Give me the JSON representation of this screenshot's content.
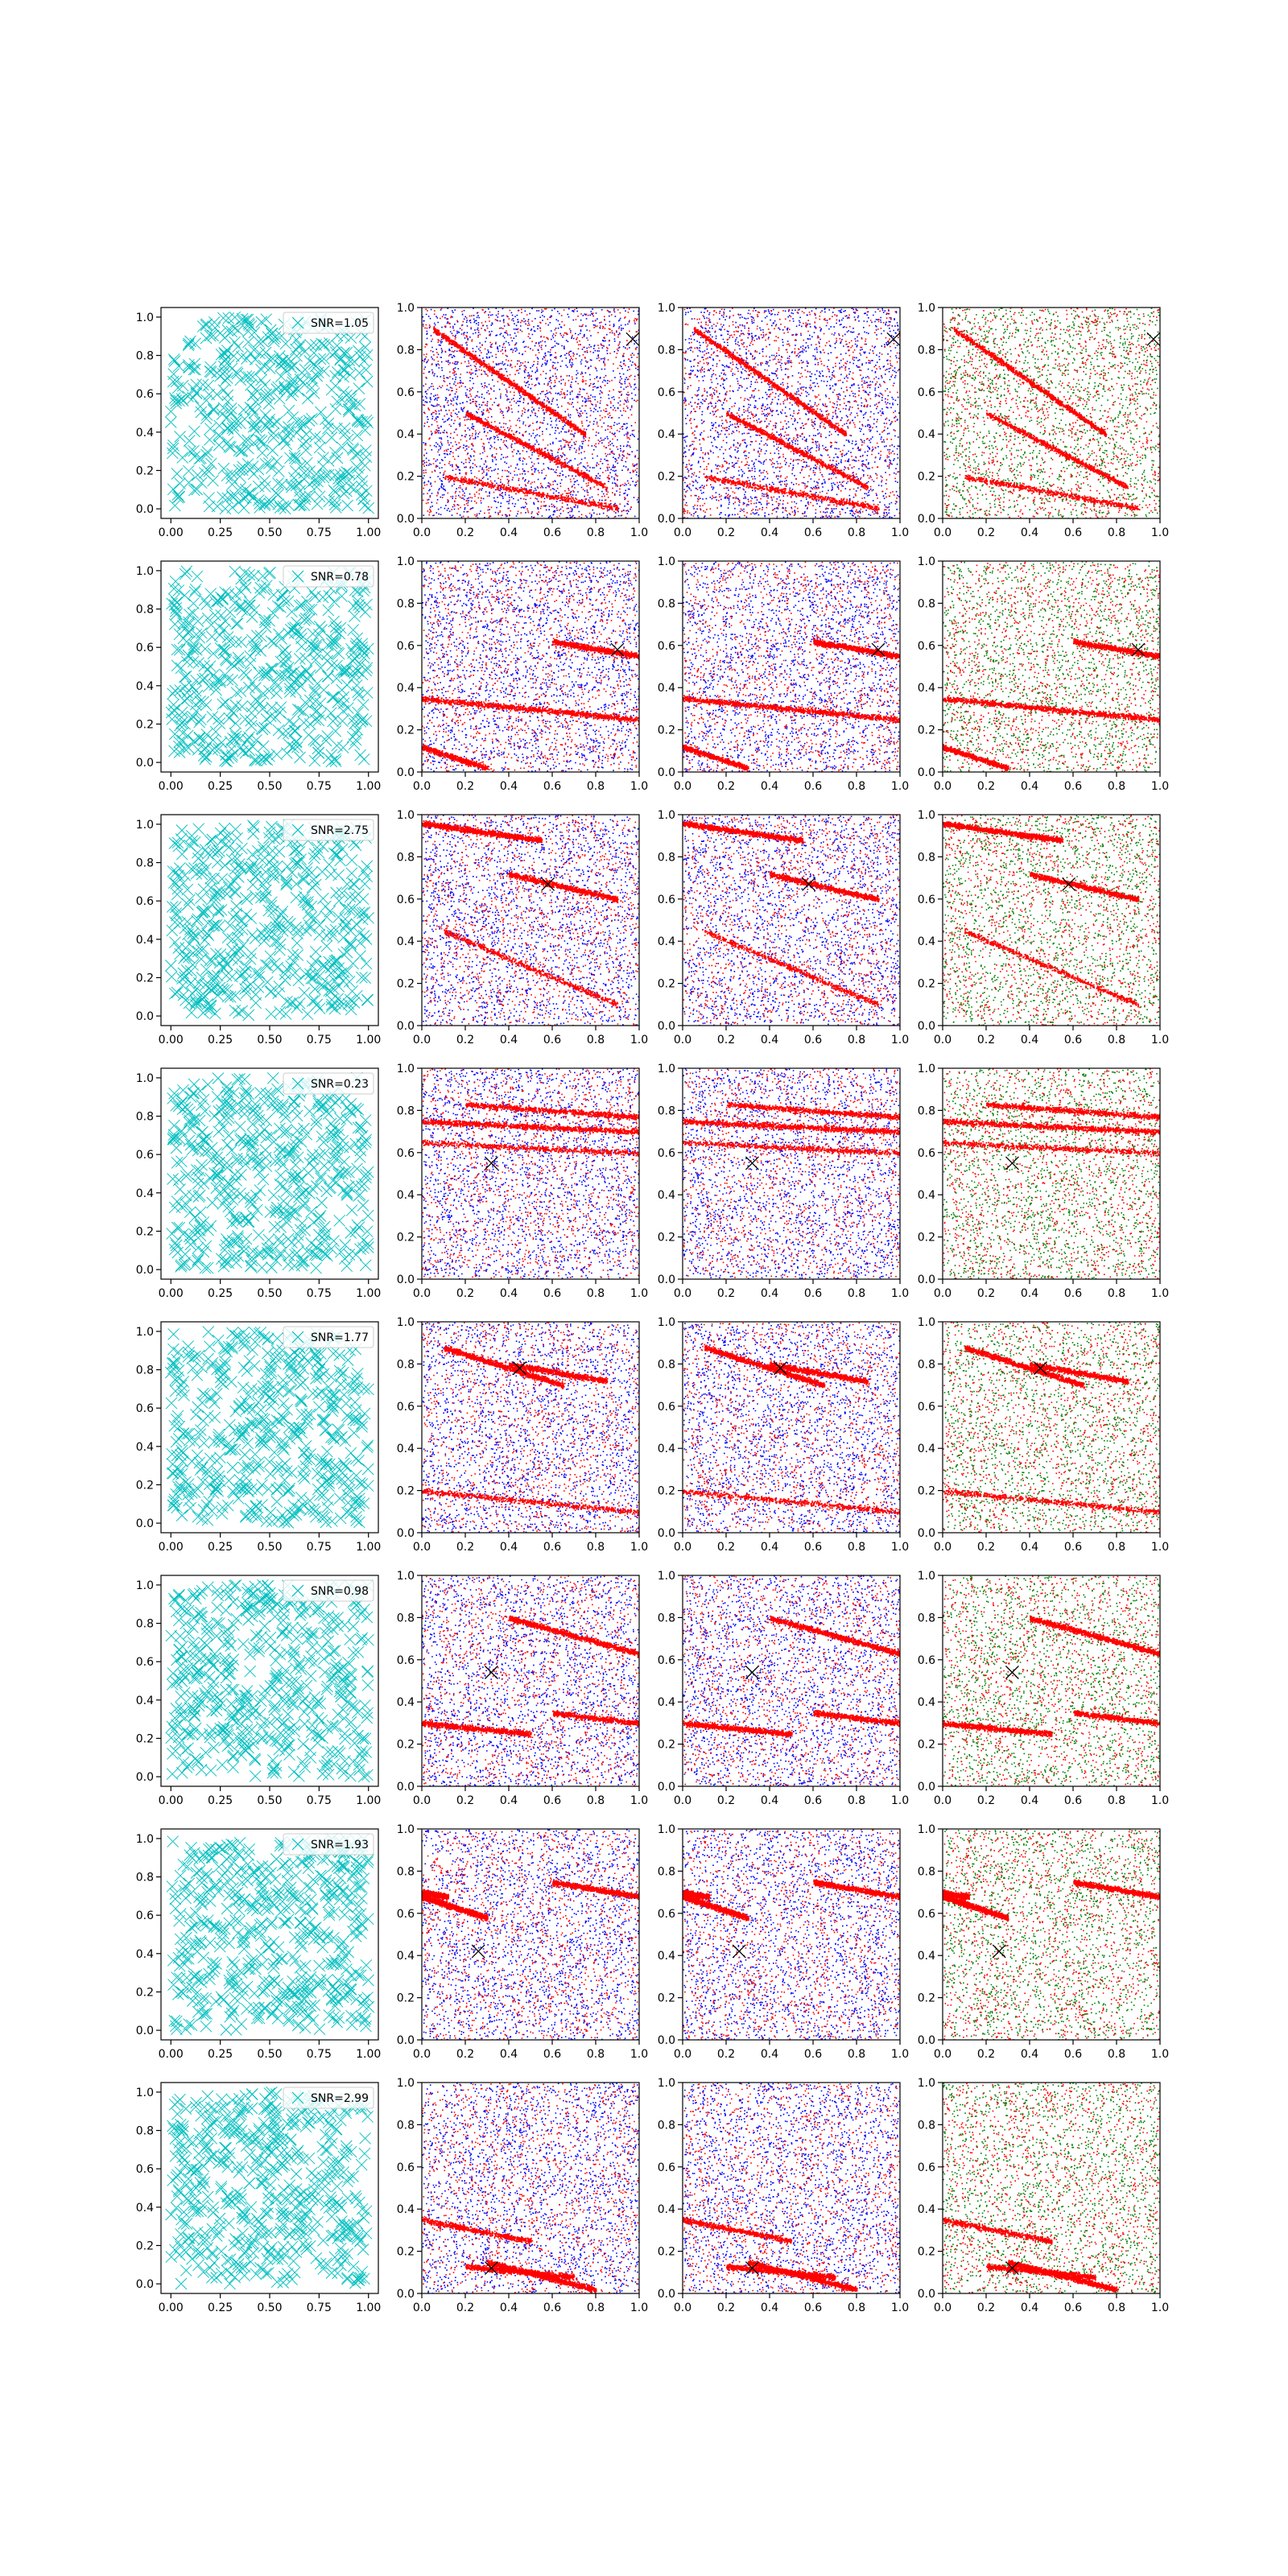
{
  "figure": {
    "columns": [
      "source positions",
      "red/blue scatter",
      "red/blue scatter",
      "red/green scatter"
    ],
    "marker": "x"
  },
  "chart_data": {
    "type": "scatter",
    "grid": false,
    "colors": {
      "positions": "#00bfbf",
      "signal": "#ff0000",
      "noise_a": "#0000ff",
      "noise_b": "#008000",
      "true_source": "#000000"
    },
    "col1_axis": {
      "xlim": [
        -0.05,
        1.05
      ],
      "ylim": [
        -0.05,
        1.05
      ],
      "xticks": [
        "0.00",
        "0.25",
        "0.50",
        "0.75",
        "1.00"
      ],
      "yticks": [
        "0.0",
        "0.2",
        "0.4",
        "0.6",
        "0.8",
        "1.0"
      ]
    },
    "scatter_axis": {
      "xlim": [
        0,
        1
      ],
      "ylim": [
        0,
        1
      ],
      "xticks": [
        "0.0",
        "0.2",
        "0.4",
        "0.6",
        "0.8",
        "1.0"
      ],
      "yticks": [
        "0.0",
        "0.2",
        "0.4",
        "0.6",
        "0.8",
        "1.0"
      ]
    },
    "rows": [
      {
        "snr_label": "SNR=1.05",
        "source": [
          0.97,
          0.85
        ],
        "bands": [
          [
            0.05,
            0.9,
            0.75,
            0.4
          ],
          [
            0.2,
            0.5,
            0.85,
            0.15
          ],
          [
            0.1,
            0.2,
            0.9,
            0.05
          ]
        ]
      },
      {
        "snr_label": "SNR=0.78",
        "source": [
          0.9,
          0.58
        ],
        "bands": [
          [
            0.0,
            0.35,
            1.0,
            0.25
          ],
          [
            0.6,
            0.62,
            1.0,
            0.55
          ],
          [
            0.0,
            0.12,
            0.3,
            0.02
          ]
        ]
      },
      {
        "snr_label": "SNR=2.75",
        "source": [
          0.58,
          0.67
        ],
        "bands": [
          [
            0.0,
            0.96,
            0.55,
            0.88
          ],
          [
            0.4,
            0.72,
            0.9,
            0.6
          ],
          [
            0.1,
            0.45,
            0.9,
            0.1
          ]
        ]
      },
      {
        "snr_label": "SNR=0.23",
        "source": [
          0.32,
          0.55
        ],
        "bands": [
          [
            0.0,
            0.75,
            1.0,
            0.7
          ],
          [
            0.2,
            0.83,
            1.0,
            0.77
          ],
          [
            0.0,
            0.65,
            1.0,
            0.6
          ]
        ]
      },
      {
        "snr_label": "SNR=1.77",
        "source": [
          0.45,
          0.78
        ],
        "bands": [
          [
            0.1,
            0.88,
            0.65,
            0.7
          ],
          [
            0.4,
            0.8,
            0.85,
            0.72
          ],
          [
            0.0,
            0.2,
            1.0,
            0.1
          ]
        ]
      },
      {
        "snr_label": "SNR=0.98",
        "source": [
          0.32,
          0.54
        ],
        "bands": [
          [
            0.4,
            0.8,
            1.0,
            0.63
          ],
          [
            0.0,
            0.3,
            0.5,
            0.25
          ],
          [
            0.6,
            0.35,
            1.0,
            0.3
          ]
        ]
      },
      {
        "snr_label": "SNR=1.93",
        "source": [
          0.26,
          0.42
        ],
        "bands": [
          [
            0.0,
            0.68,
            0.3,
            0.58
          ],
          [
            0.6,
            0.75,
            1.0,
            0.68
          ],
          [
            0.0,
            0.7,
            0.12,
            0.68
          ]
        ]
      },
      {
        "snr_label": "SNR=2.99",
        "source": [
          0.32,
          0.12
        ],
        "bands": [
          [
            0.3,
            0.15,
            0.8,
            0.02
          ],
          [
            0.2,
            0.13,
            0.7,
            0.08
          ],
          [
            0.0,
            0.35,
            0.5,
            0.25
          ]
        ]
      }
    ]
  }
}
